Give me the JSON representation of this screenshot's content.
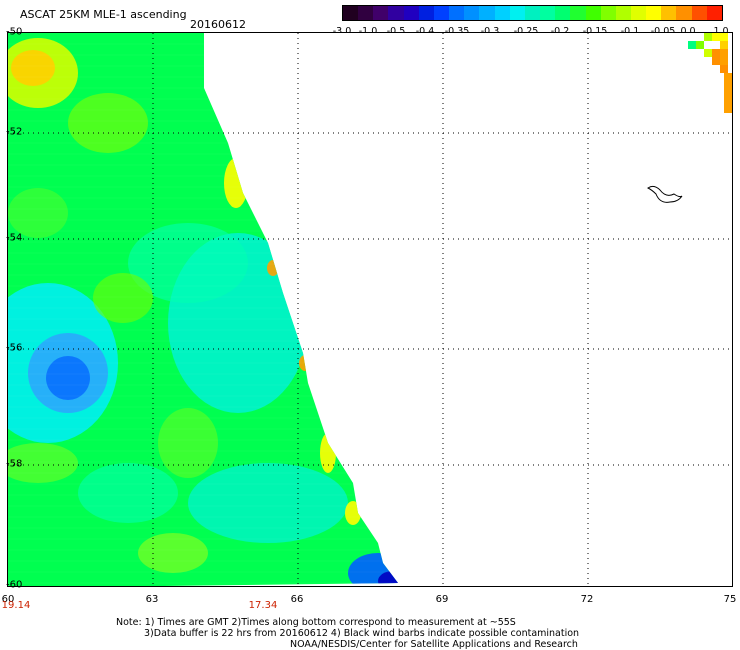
{
  "header": {
    "title": "ASCAT 25KM MLE-1 ascending",
    "date": "20160612"
  },
  "colorbar": {
    "labels": [
      "-3.0",
      "-1.0",
      "-0.5",
      "-0.4",
      "-0.35",
      "-0.3",
      "-0.25",
      "-0.2",
      "-0.15",
      "-0.1",
      "-0.05",
      "0.0",
      "1.0"
    ],
    "colors": [
      "#200020",
      "#40006a",
      "#2000c0",
      "#0040ff",
      "#0090ff",
      "#00d0ff",
      "#00f0c0",
      "#00ff70",
      "#40ff00",
      "#b0ff00",
      "#ffff00",
      "#ff9000",
      "#ff2000"
    ]
  },
  "axes": {
    "lat_labels": [
      "-50",
      "-52",
      "-54",
      "-56",
      "-58",
      "-60"
    ],
    "lon_labels": [
      "60",
      "63",
      "66",
      "69",
      "72",
      "75"
    ],
    "time_labels": [
      "19.14",
      "17.34"
    ]
  },
  "notes": {
    "line1": "Note: 1) Times are GMT 2)Times along bottom correspond to measurement at ~55S",
    "line2": "3)Data buffer is 22 hrs from 20160612 4) Black wind barbs indicate possible contamination",
    "line3": "NOAA/NESDIS/Center for Satellite Applications and Research"
  },
  "map": {
    "swath_colors": {
      "green": "#00ff50",
      "cyan": "#00f0f0",
      "blue": "#0060ff",
      "yellow": "#ffff00",
      "orange": "#ffa000"
    }
  }
}
